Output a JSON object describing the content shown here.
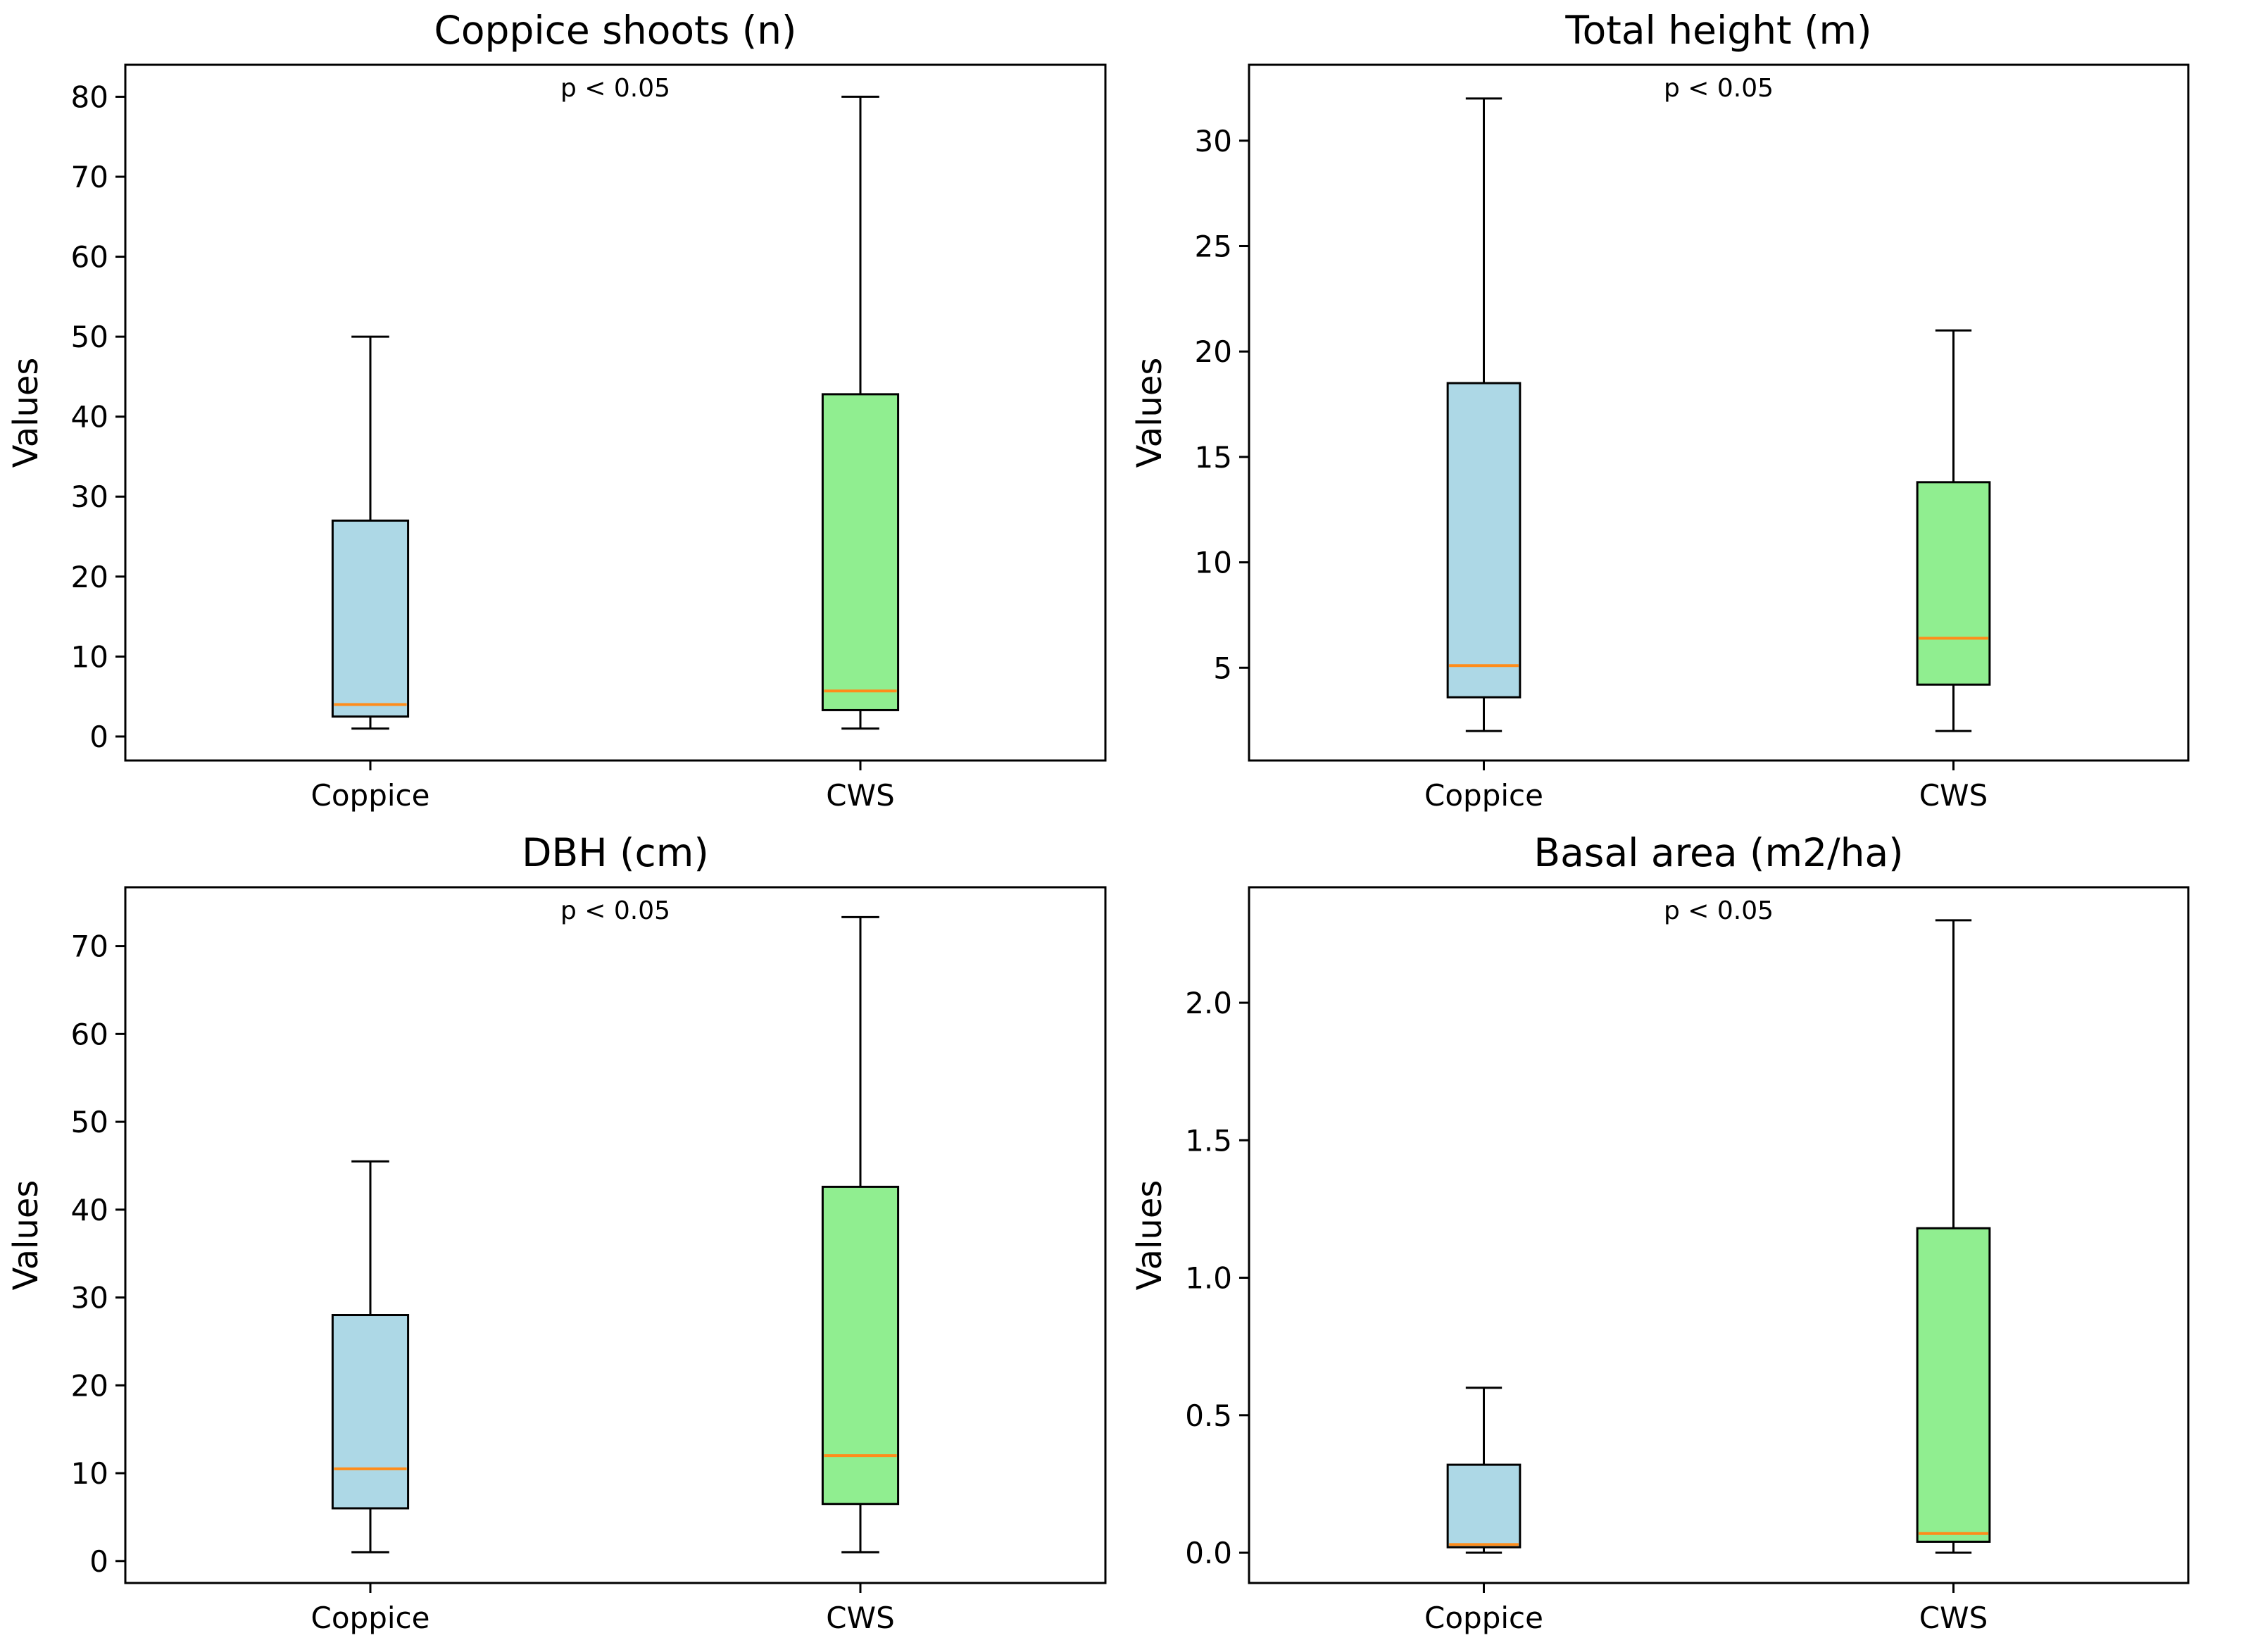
{
  "colors": {
    "coppice_box": "#add8e6",
    "cws_box": "#90ee90",
    "median": "#ff8c1a",
    "line": "#000000"
  },
  "chart_data": [
    {
      "type": "boxplot",
      "title": "Coppice shoots (n)",
      "ylabel": "Values",
      "annotation": "p < 0.05",
      "categories": [
        "Coppice",
        "CWS"
      ],
      "ylim": [
        -3,
        84
      ],
      "yticks": [
        0,
        10,
        20,
        30,
        40,
        50,
        60,
        70,
        80
      ],
      "series": [
        {
          "name": "Coppice",
          "color": "#add8e6",
          "whisker_low": 1,
          "q1": 2.5,
          "median": 4,
          "q3": 27,
          "whisker_high": 50
        },
        {
          "name": "CWS",
          "color": "#90ee90",
          "whisker_low": 1,
          "q1": 3.3,
          "median": 5.7,
          "q3": 42.8,
          "whisker_high": 80
        }
      ]
    },
    {
      "type": "boxplot",
      "title": "Total height (m)",
      "ylabel": "Values",
      "annotation": "p < 0.05",
      "categories": [
        "Coppice",
        "CWS"
      ],
      "ylim": [
        0.6,
        33.6
      ],
      "yticks": [
        5,
        10,
        15,
        20,
        25,
        30
      ],
      "series": [
        {
          "name": "Coppice",
          "color": "#add8e6",
          "whisker_low": 2,
          "q1": 3.6,
          "median": 5.1,
          "q3": 18.5,
          "whisker_high": 32
        },
        {
          "name": "CWS",
          "color": "#90ee90",
          "whisker_low": 2,
          "q1": 4.2,
          "median": 6.4,
          "q3": 13.8,
          "whisker_high": 21
        }
      ]
    },
    {
      "type": "boxplot",
      "title": "DBH (cm)",
      "ylabel": "Values",
      "annotation": "p < 0.05",
      "categories": [
        "Coppice",
        "CWS"
      ],
      "ylim": [
        -2.5,
        76.7
      ],
      "yticks": [
        0,
        10,
        20,
        30,
        40,
        50,
        60,
        70
      ],
      "series": [
        {
          "name": "Coppice",
          "color": "#add8e6",
          "whisker_low": 1,
          "q1": 6,
          "median": 10.5,
          "q3": 28,
          "whisker_high": 45.5
        },
        {
          "name": "CWS",
          "color": "#90ee90",
          "whisker_low": 1,
          "q1": 6.5,
          "median": 12,
          "q3": 42.6,
          "whisker_high": 73.3
        }
      ]
    },
    {
      "type": "boxplot",
      "title": "Basal area (m2/ha)",
      "ylabel": "Values",
      "annotation": "p < 0.05",
      "categories": [
        "Coppice",
        "CWS"
      ],
      "ylim": [
        -0.11,
        2.42
      ],
      "yticks": [
        0.0,
        0.5,
        1.0,
        1.5,
        2.0
      ],
      "ytick_labels": [
        "0.0",
        "0.5",
        "1.0",
        "1.5",
        "2.0"
      ],
      "series": [
        {
          "name": "Coppice",
          "color": "#add8e6",
          "whisker_low": 0.0,
          "q1": 0.02,
          "median": 0.03,
          "q3": 0.32,
          "whisker_high": 0.6
        },
        {
          "name": "CWS",
          "color": "#90ee90",
          "whisker_low": 0.0,
          "q1": 0.04,
          "median": 0.07,
          "q3": 1.18,
          "whisker_high": 2.3
        }
      ]
    }
  ]
}
